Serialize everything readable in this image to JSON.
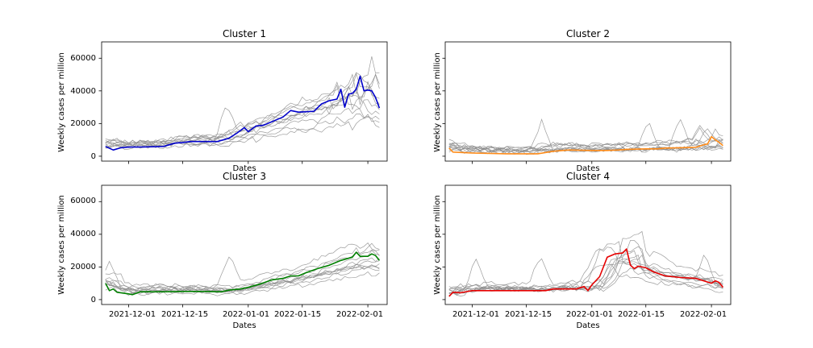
{
  "chart_data": [
    {
      "type": "line",
      "title": "Cluster 1",
      "xlabel": "Dates",
      "ylabel": "Weekly cases per million",
      "color": "#0000cc",
      "ylim": [
        -3000,
        70000
      ],
      "yticks": [
        0,
        20000,
        40000,
        60000
      ],
      "ytick_labels": [
        "0",
        "20000",
        "40000",
        "60000"
      ],
      "xticks": [
        "2021-12-01",
        "2021-12-15",
        "2022-01-01",
        "2022-01-15",
        "2022-02-01"
      ],
      "xtick_labels_visible": false,
      "series_values": [
        [
          "2021-11-25",
          6000
        ],
        [
          "2021-11-27",
          3800
        ],
        [
          "2021-11-29",
          5200
        ],
        [
          "2021-12-01",
          5600
        ],
        [
          "2021-12-05",
          5700
        ],
        [
          "2021-12-10",
          6000
        ],
        [
          "2021-12-13",
          8000
        ],
        [
          "2021-12-15",
          8400
        ],
        [
          "2021-12-17",
          9000
        ],
        [
          "2021-12-24",
          9000
        ],
        [
          "2021-12-27",
          11000
        ],
        [
          "2021-12-29",
          14000
        ],
        [
          "2021-12-31",
          17500
        ],
        [
          "2022-01-01",
          15000
        ],
        [
          "2022-01-03",
          18500
        ],
        [
          "2022-01-05",
          19000
        ],
        [
          "2022-01-08",
          22000
        ],
        [
          "2022-01-10",
          24000
        ],
        [
          "2022-01-12",
          28000
        ],
        [
          "2022-01-14",
          27000
        ],
        [
          "2022-01-18",
          27500
        ],
        [
          "2022-01-20",
          32000
        ],
        [
          "2022-01-22",
          34000
        ],
        [
          "2022-01-24",
          35000
        ],
        [
          "2022-01-25",
          41000
        ],
        [
          "2022-01-26",
          30000
        ],
        [
          "2022-01-27",
          38000
        ],
        [
          "2022-01-28",
          38500
        ],
        [
          "2022-01-29",
          41000
        ],
        [
          "2022-01-30",
          49000
        ],
        [
          "2022-01-31",
          40000
        ],
        [
          "2022-02-01",
          40500
        ],
        [
          "2022-02-02",
          40000
        ],
        [
          "2022-02-03",
          36000
        ],
        [
          "2022-02-04",
          29500
        ]
      ]
    },
    {
      "type": "line",
      "title": "Cluster 2",
      "xlabel": "Dates",
      "ylabel": "Weekly cases per million",
      "color": "#ff8c1a",
      "ylim": [
        -3000,
        70000
      ],
      "yticks": [
        0,
        20000,
        40000,
        60000
      ],
      "ytick_labels": [
        "",
        "",
        "",
        ""
      ],
      "xticks": [
        "2021-12-01",
        "2021-12-15",
        "2022-01-01",
        "2022-01-15",
        "2022-02-01"
      ],
      "xtick_labels_visible": false,
      "series_values": [
        [
          "2021-11-25",
          5000
        ],
        [
          "2021-11-26",
          2500
        ],
        [
          "2021-12-01",
          2000
        ],
        [
          "2021-12-10",
          1500
        ],
        [
          "2021-12-18",
          1500
        ],
        [
          "2021-12-22",
          3000
        ],
        [
          "2021-12-26",
          3800
        ],
        [
          "2022-01-01",
          3500
        ],
        [
          "2022-01-05",
          3500
        ],
        [
          "2022-01-08",
          3800
        ],
        [
          "2022-01-10",
          4200
        ],
        [
          "2022-01-15",
          4500
        ],
        [
          "2022-01-18",
          4500
        ],
        [
          "2022-01-20",
          5000
        ],
        [
          "2022-01-24",
          5200
        ],
        [
          "2022-01-28",
          5500
        ],
        [
          "2022-01-30",
          7000
        ],
        [
          "2022-01-31",
          7500
        ],
        [
          "2022-02-01",
          12000
        ],
        [
          "2022-02-02",
          10000
        ],
        [
          "2022-02-03",
          8500
        ],
        [
          "2022-02-04",
          6500
        ]
      ]
    },
    {
      "type": "line",
      "title": "Cluster 3",
      "xlabel": "Dates",
      "ylabel": "Weekly cases per million",
      "color": "#008000",
      "ylim": [
        -3000,
        70000
      ],
      "yticks": [
        0,
        20000,
        40000,
        60000
      ],
      "ytick_labels": [
        "0",
        "20000",
        "40000",
        "60000"
      ],
      "xticks": [
        "2021-12-01",
        "2021-12-15",
        "2022-01-01",
        "2022-01-15",
        "2022-02-01"
      ],
      "xtick_labels": [
        "2021-12-01",
        "2021-12-15",
        "2022-01-01",
        "2022-01-15",
        "2022-02-01"
      ],
      "xtick_labels_visible": true,
      "series_values": [
        [
          "2021-11-25",
          10000
        ],
        [
          "2021-11-26",
          5500
        ],
        [
          "2021-11-27",
          6500
        ],
        [
          "2021-11-28",
          4500
        ],
        [
          "2021-12-01",
          3500
        ],
        [
          "2021-12-02",
          3000
        ],
        [
          "2021-12-04",
          4800
        ],
        [
          "2021-12-10",
          4800
        ],
        [
          "2021-12-15",
          5000
        ],
        [
          "2021-12-20",
          5000
        ],
        [
          "2021-12-25",
          4800
        ],
        [
          "2021-12-27",
          5800
        ],
        [
          "2021-12-30",
          6500
        ],
        [
          "2022-01-01",
          7500
        ],
        [
          "2022-01-04",
          9500
        ],
        [
          "2022-01-07",
          12000
        ],
        [
          "2022-01-10",
          13000
        ],
        [
          "2022-01-12",
          14500
        ],
        [
          "2022-01-14",
          14500
        ],
        [
          "2022-01-16",
          16500
        ],
        [
          "2022-01-19",
          19000
        ],
        [
          "2022-01-22",
          21000
        ],
        [
          "2022-01-25",
          24000
        ],
        [
          "2022-01-28",
          26000
        ],
        [
          "2022-01-29",
          29000
        ],
        [
          "2022-01-30",
          26500
        ],
        [
          "2022-02-01",
          26500
        ],
        [
          "2022-02-02",
          28000
        ],
        [
          "2022-02-03",
          27000
        ],
        [
          "2022-02-04",
          24000
        ]
      ]
    },
    {
      "type": "line",
      "title": "Cluster 4",
      "xlabel": "Dates",
      "ylabel": "Weekly cases per million",
      "color": "#e60000",
      "ylim": [
        -3000,
        70000
      ],
      "yticks": [
        0,
        20000,
        40000,
        60000
      ],
      "ytick_labels": [
        "",
        "",
        "",
        ""
      ],
      "xticks": [
        "2021-12-01",
        "2021-12-15",
        "2022-01-01",
        "2022-01-15",
        "2022-02-01"
      ],
      "xtick_labels": [
        "2021-12-01",
        "2021-12-15",
        "2022-01-01",
        "2022-01-15",
        "2022-02-01"
      ],
      "xtick_labels_visible": true,
      "series_values": [
        [
          "2021-11-25",
          2000
        ],
        [
          "2021-11-26",
          4500
        ],
        [
          "2021-11-28",
          4200
        ],
        [
          "2021-12-01",
          5500
        ],
        [
          "2021-12-08",
          5500
        ],
        [
          "2021-12-15",
          5500
        ],
        [
          "2021-12-20",
          5500
        ],
        [
          "2021-12-22",
          6500
        ],
        [
          "2021-12-28",
          6500
        ],
        [
          "2021-12-30",
          8000
        ],
        [
          "2021-12-31",
          5500
        ],
        [
          "2022-01-01",
          9000
        ],
        [
          "2022-01-03",
          14000
        ],
        [
          "2022-01-05",
          26000
        ],
        [
          "2022-01-07",
          28000
        ],
        [
          "2022-01-09",
          28500
        ],
        [
          "2022-01-10",
          31000
        ],
        [
          "2022-01-11",
          21000
        ],
        [
          "2022-01-12",
          19000
        ],
        [
          "2022-01-13",
          20500
        ],
        [
          "2022-01-15",
          19500
        ],
        [
          "2022-01-17",
          17000
        ],
        [
          "2022-01-20",
          14500
        ],
        [
          "2022-01-24",
          13500
        ],
        [
          "2022-01-28",
          13000
        ],
        [
          "2022-02-01",
          10000
        ],
        [
          "2022-02-02",
          11500
        ],
        [
          "2022-02-03",
          10500
        ],
        [
          "2022-02-04",
          7500
        ]
      ]
    }
  ]
}
